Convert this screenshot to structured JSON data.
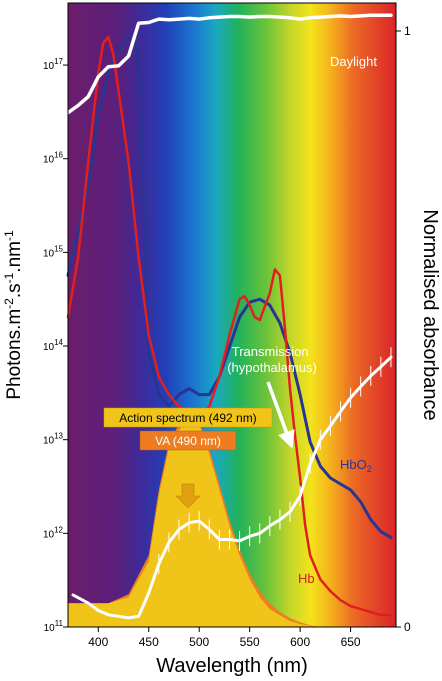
{
  "chart_data": {
    "type": "line",
    "xlabel": "Wavelength (nm)",
    "ylabel_left": "Photons.m-2.s-1.nm-1",
    "ylabel_right": "Normalised absorbance",
    "xlim": [
      370,
      695
    ],
    "ylim_left": [
      100000000000.0,
      4.6e+17
    ],
    "y_scale_left": "log",
    "ylim_right": [
      0,
      1
    ],
    "x_ticks": [
      400,
      450,
      500,
      550,
      600,
      650
    ],
    "y_ticks_left": [
      {
        "value": 100000000000.0,
        "base": "10",
        "exp": "11"
      },
      {
        "value": 1000000000000.0,
        "base": "10",
        "exp": "12"
      },
      {
        "value": 10000000000000.0,
        "base": "10",
        "exp": "13"
      },
      {
        "value": 100000000000000.0,
        "base": "10",
        "exp": "14"
      },
      {
        "value": 1000000000000000.0,
        "base": "10",
        "exp": "15"
      },
      {
        "value": 1e+16,
        "base": "10",
        "exp": "16"
      },
      {
        "value": 1e+17,
        "base": "10",
        "exp": "17"
      }
    ],
    "y_ticks_right": [
      {
        "value": 0,
        "label": "0"
      },
      {
        "value": 1,
        "label": "1"
      }
    ],
    "series": [
      {
        "name": "Daylight",
        "color": "#ffffff",
        "axis": "left",
        "x": [
          370,
          380,
          390,
          400,
          410,
          420,
          430,
          440,
          450,
          460,
          470,
          480,
          490,
          500,
          510,
          520,
          530,
          540,
          550,
          560,
          570,
          580,
          590,
          600,
          610,
          620,
          630,
          640,
          650,
          660,
          670,
          680,
          690
        ],
        "y": [
          3.1e+16,
          3.7e+16,
          4.6e+16,
          7.5e+16,
          9.6e+16,
          9.8e+16,
          1.25e+17,
          2.8e+17,
          2.85e+17,
          3.1e+17,
          3.05e+17,
          3.1e+17,
          3.15e+17,
          3.1e+17,
          3.2e+17,
          3.25e+17,
          3.3e+17,
          3.3e+17,
          3.25e+17,
          3.3e+17,
          3.3e+17,
          3.25e+17,
          3.2e+17,
          3.1e+17,
          3.2e+17,
          3.25e+17,
          3.3e+17,
          3.35e+17,
          3.3e+17,
          3.35e+17,
          3.4e+17,
          3.4e+17,
          3.4e+17
        ]
      },
      {
        "name": "Transmission (hypothalamus)",
        "color": "#ffffff",
        "axis": "left",
        "x": [
          375,
          390,
          400,
          410,
          420,
          430,
          440,
          450,
          460,
          470,
          480,
          490,
          500,
          510,
          520,
          530,
          540,
          550,
          560,
          570,
          580,
          590,
          600,
          610,
          620,
          630,
          640,
          650,
          660,
          670,
          680,
          690
        ],
        "y": [
          220000000000.0,
          180000000000.0,
          150000000000.0,
          135000000000.0,
          130000000000.0,
          125000000000.0,
          130000000000.0,
          230000000000.0,
          470000000000.0,
          800000000000.0,
          1100000000000.0,
          1300000000000.0,
          1350000000000.0,
          1100000000000.0,
          860000000000.0,
          860000000000.0,
          830000000000.0,
          930000000000.0,
          1000000000000.0,
          1200000000000.0,
          1400000000000.0,
          1700000000000.0,
          2500000000000.0,
          5500000000000.0,
          10000000000000.0,
          14000000000000.0,
          20000000000000.0,
          28000000000000.0,
          37000000000000.0,
          48000000000000.0,
          60000000000000.0,
          76000000000000.0
        ]
      },
      {
        "name": "Hb",
        "color": "#e02020",
        "axis": "right",
        "x": [
          370,
          380,
          390,
          400,
          405,
          410,
          415,
          420,
          430,
          440,
          450,
          460,
          470,
          480,
          490,
          500,
          510,
          520,
          530,
          540,
          545,
          550,
          555,
          560,
          570,
          575,
          580,
          585,
          590,
          595,
          600,
          605,
          610,
          620,
          630,
          640,
          650,
          660,
          670,
          680,
          690
        ],
        "y": [
          0.52,
          0.62,
          0.78,
          0.93,
          0.98,
          0.99,
          0.96,
          0.9,
          0.78,
          0.62,
          0.49,
          0.42,
          0.39,
          0.37,
          0.36,
          0.355,
          0.37,
          0.42,
          0.49,
          0.55,
          0.555,
          0.54,
          0.52,
          0.515,
          0.56,
          0.6,
          0.59,
          0.5,
          0.4,
          0.32,
          0.25,
          0.17,
          0.12,
          0.08,
          0.06,
          0.045,
          0.035,
          0.03,
          0.025,
          0.02,
          0.02
        ]
      },
      {
        "name": "HbO2",
        "color": "#283593",
        "axis": "right",
        "x": [
          370,
          390,
          400,
          410,
          420,
          430,
          435,
          440,
          445,
          450,
          460,
          470,
          480,
          490,
          500,
          510,
          520,
          530,
          540,
          550,
          560,
          570,
          580,
          590,
          600,
          610,
          620,
          630,
          640,
          650,
          660,
          670,
          680,
          690
        ],
        "y": [
          0.59,
          0.74,
          0.86,
          0.93,
          0.97,
          0.99,
          0.99,
          0.95,
          0.72,
          0.46,
          0.39,
          0.37,
          0.39,
          0.4,
          0.39,
          0.39,
          0.42,
          0.47,
          0.52,
          0.545,
          0.55,
          0.54,
          0.51,
          0.46,
          0.39,
          0.31,
          0.27,
          0.25,
          0.24,
          0.23,
          0.21,
          0.18,
          0.16,
          0.15
        ]
      }
    ],
    "areas": [
      {
        "name": "Action spectrum (492 nm)",
        "color": "#f0c419",
        "x": [
          370,
          390,
          410,
          430,
          450,
          460,
          470,
          480,
          490,
          500,
          510,
          520,
          530,
          540,
          550,
          560,
          570,
          580,
          590,
          600,
          610,
          620
        ],
        "y": [
          0.04,
          0.04,
          0.04,
          0.05,
          0.11,
          0.22,
          0.3,
          0.33,
          0.35,
          0.34,
          0.29,
          0.23,
          0.17,
          0.12,
          0.08,
          0.05,
          0.03,
          0.02,
          0.01,
          0.005,
          0.002,
          0.0
        ]
      },
      {
        "name": "VA (490 nm)",
        "color": "#ee7d22",
        "x": [
          370,
          390,
          410,
          430,
          450,
          460,
          470,
          480,
          490,
          500,
          510,
          520,
          530,
          540,
          550,
          560,
          570,
          580,
          590,
          600,
          610,
          620
        ],
        "y": [
          0.04,
          0.04,
          0.04,
          0.055,
          0.12,
          0.23,
          0.31,
          0.34,
          0.355,
          0.345,
          0.3,
          0.24,
          0.18,
          0.13,
          0.09,
          0.06,
          0.04,
          0.025,
          0.015,
          0.008,
          0.003,
          0.0
        ]
      }
    ],
    "labels": {
      "daylight": "Daylight",
      "transmission_line1": "Transmission",
      "transmission_line2": "(hypothalamus)",
      "action_spectrum": "Action spectrum (492 nm)",
      "va": "VA (490 nm)",
      "hbo2_main": "HbO",
      "hbo2_sub": "2",
      "hb": "Hb",
      "ylabel_main": "Photons.m",
      "ylabel_exp1": "-2",
      "ylabel_mid": ".s",
      "ylabel_exp2": "-1",
      "ylabel_end": ".nm",
      "ylabel_exp3": "-1"
    },
    "colors": {
      "background_gradient": [
        "#6a1b6a",
        "#5a1a7a",
        "#3a2a9a",
        "#1e4fc0",
        "#1aa0c8",
        "#2ab34a",
        "#9bcb2c",
        "#f1e61b",
        "#f2a21c",
        "#e8432a",
        "#d9262a"
      ],
      "action_badge": "#f0c419",
      "va_badge": "#ee7d22"
    }
  }
}
